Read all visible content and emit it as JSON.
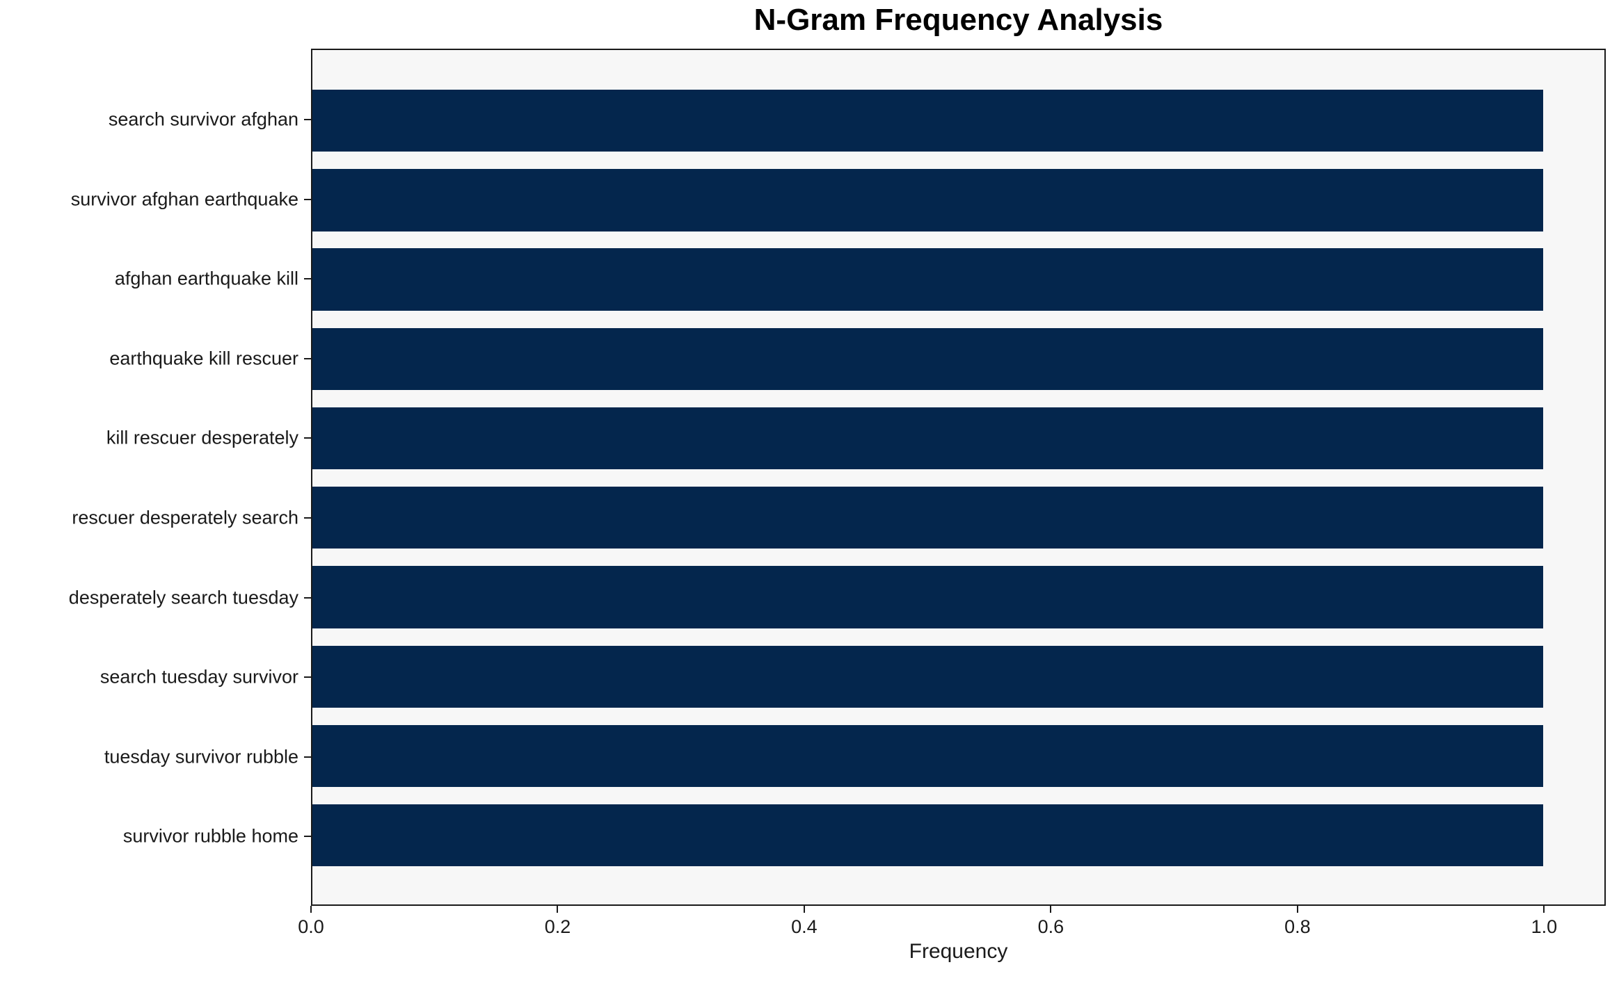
{
  "chart_data": {
    "type": "bar",
    "orientation": "horizontal",
    "title": "N-Gram Frequency Analysis",
    "xlabel": "Frequency",
    "ylabel": "",
    "categories": [
      "search survivor afghan",
      "survivor afghan earthquake",
      "afghan earthquake kill",
      "earthquake kill rescuer",
      "kill rescuer desperately",
      "rescuer desperately search",
      "desperately search tuesday",
      "search tuesday survivor",
      "tuesday survivor rubble",
      "survivor rubble home"
    ],
    "values": [
      1.0,
      1.0,
      1.0,
      1.0,
      1.0,
      1.0,
      1.0,
      1.0,
      1.0,
      1.0
    ],
    "xlim": [
      0,
      1.05
    ],
    "xticks": [
      0.0,
      0.2,
      0.4,
      0.6,
      0.8,
      1.0
    ],
    "xtick_labels": [
      "0.0",
      "0.2",
      "0.4",
      "0.6",
      "0.8",
      "1.0"
    ],
    "grid": false,
    "legend": null,
    "colors": {
      "bar": "#04264d",
      "plot_background": "#f7f7f7",
      "figure_background": "#ffffff",
      "spine": "#1a1a1a",
      "text": "#1a1a1a",
      "title_text": "#000000"
    }
  }
}
